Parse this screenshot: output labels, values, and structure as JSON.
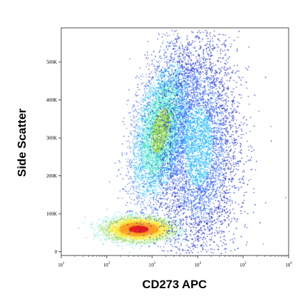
{
  "chart_data": {
    "type": "scatter",
    "title": "",
    "xlabel": "CD273 APC",
    "ylabel": "Side Scatter",
    "x_scale": "log",
    "xlim": [
      10,
      1000000
    ],
    "ylim": [
      -10000,
      590000
    ],
    "x_ticks": [
      {
        "value": 10,
        "base": "10",
        "exp": "1"
      },
      {
        "value": 100,
        "base": "10",
        "exp": "2"
      },
      {
        "value": 1000,
        "base": "10",
        "exp": "3"
      },
      {
        "value": 10000,
        "base": "10",
        "exp": "4"
      },
      {
        "value": 100000,
        "base": "10",
        "exp": "5"
      },
      {
        "value": 1000000,
        "base": "10",
        "exp": "6"
      }
    ],
    "y_ticks": [
      {
        "value": 0,
        "label": "0"
      },
      {
        "value": 100000,
        "label": "100K"
      },
      {
        "value": 200000,
        "label": "200K"
      },
      {
        "value": 300000,
        "label": "300K"
      },
      {
        "value": 400000,
        "label": "400K"
      },
      {
        "value": 500000,
        "label": "500K"
      }
    ],
    "grid": false,
    "legend": "none",
    "colormap": "density (blue → cyan → green → yellow → red)",
    "populations": [
      {
        "x_center": 500,
        "y_center": 60000,
        "x_spread_decades": 0.35,
        "y_spread": 15000,
        "density": "highest",
        "color": "#e31a1c"
      },
      {
        "x_center": 1500,
        "y_center": 320000,
        "x_spread_decades": 0.28,
        "y_spread": 90000,
        "density": "medium",
        "color": "#7fd13b"
      },
      {
        "x_center": 10000,
        "y_center": 280000,
        "x_spread_decades": 0.45,
        "y_spread": 150000,
        "density": "low",
        "color": "#1e32d6"
      }
    ]
  }
}
